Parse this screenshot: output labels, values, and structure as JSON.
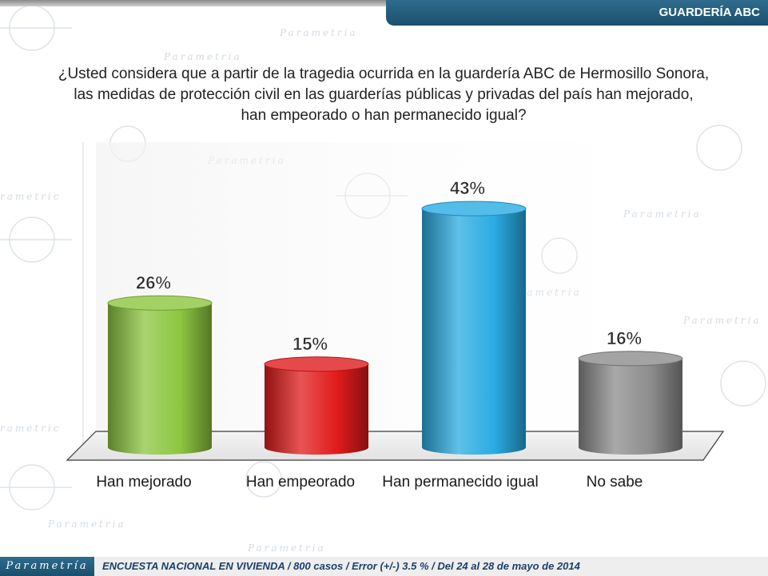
{
  "header": {
    "section_label": "GUARDERÍA ABC"
  },
  "question": {
    "line1": "¿Usted considera que a partir de la tragedia ocurrida en la guardería ABC de Hermosillo Sonora,",
    "line2": "las medidas de protección civil en las guarderías públicas y privadas del país han mejorado,",
    "line3": "han empeorado o han permanecido igual?"
  },
  "footer": {
    "logo_text": "Parametría",
    "survey_text": "ENCUESTA NACIONAL EN VIVIENDA / 800 casos / Error (+/-) 3.5 % / Del 24 al 28 de mayo de 2014"
  },
  "colors": {
    "accent": "#1b4f6b",
    "bar_green": "#8cc63f",
    "bar_red": "#e01b1b",
    "bar_blue": "#29abe2",
    "bar_gray": "#8c8c8c"
  },
  "chart_data": {
    "type": "bar",
    "categories": [
      "Han mejorado",
      "Han empeorado",
      "Han permanecido igual",
      "No sabe"
    ],
    "values": [
      26,
      15,
      43,
      16
    ],
    "labels": [
      "26%",
      "15%",
      "43%",
      "16%"
    ],
    "colors": [
      "#8cc63f",
      "#e01b1b",
      "#29abe2",
      "#8c8c8c"
    ],
    "ylim": [
      0,
      60
    ],
    "grid": false,
    "legend": "none"
  }
}
